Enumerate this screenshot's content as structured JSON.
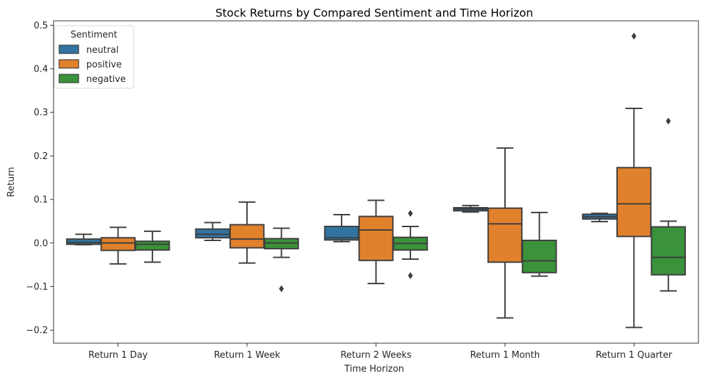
{
  "chart_data": {
    "type": "box",
    "title": "Stock Returns by Compared Sentiment and Time Horizon",
    "xlabel": "Time Horizon",
    "ylabel": "Return",
    "ylim": [
      -0.23,
      0.51
    ],
    "yticks": [
      -0.2,
      -0.1,
      0.0,
      0.1,
      0.2,
      0.3,
      0.4,
      0.5
    ],
    "ytick_labels": [
      "−0.2",
      "−0.1",
      "0.0",
      "0.1",
      "0.2",
      "0.3",
      "0.4",
      "0.5"
    ],
    "categories": [
      "Return 1 Day",
      "Return 1 Week",
      "Return 2 Weeks",
      "Return 1 Month",
      "Return 1 Quarter"
    ],
    "grid": false,
    "legend": {
      "title": "Sentiment",
      "placement": "top-left"
    },
    "series": [
      {
        "name": "neutral",
        "color": "#3274a1",
        "boxes": [
          {
            "whislo": -0.004,
            "q1": -0.003,
            "med": 0.001,
            "q3": 0.009,
            "whishi": 0.02,
            "fliers": []
          },
          {
            "whislo": 0.006,
            "q1": 0.012,
            "med": 0.02,
            "q3": 0.032,
            "whishi": 0.047,
            "fliers": []
          },
          {
            "whislo": 0.003,
            "q1": 0.007,
            "med": 0.012,
            "q3": 0.038,
            "whishi": 0.065,
            "fliers": []
          },
          {
            "whislo": 0.071,
            "q1": 0.074,
            "med": 0.078,
            "q3": 0.081,
            "whishi": 0.086,
            "fliers": []
          },
          {
            "whislo": 0.049,
            "q1": 0.055,
            "med": 0.06,
            "q3": 0.066,
            "whishi": 0.068,
            "fliers": []
          }
        ]
      },
      {
        "name": "positive",
        "color": "#e1812c",
        "boxes": [
          {
            "whislo": -0.048,
            "q1": -0.017,
            "med": 0.0,
            "q3": 0.012,
            "whishi": 0.036,
            "fliers": []
          },
          {
            "whislo": -0.046,
            "q1": -0.011,
            "med": 0.009,
            "q3": 0.042,
            "whishi": 0.094,
            "fliers": []
          },
          {
            "whislo": -0.093,
            "q1": -0.04,
            "med": 0.03,
            "q3": 0.061,
            "whishi": 0.098,
            "fliers": []
          },
          {
            "whislo": -0.172,
            "q1": -0.044,
            "med": 0.044,
            "q3": 0.08,
            "whishi": 0.218,
            "fliers": []
          },
          {
            "whislo": -0.194,
            "q1": 0.015,
            "med": 0.09,
            "q3": 0.173,
            "whishi": 0.309,
            "fliers": [
              0.475
            ]
          }
        ]
      },
      {
        "name": "negative",
        "color": "#3a923a",
        "boxes": [
          {
            "whislo": -0.044,
            "q1": -0.016,
            "med": -0.003,
            "q3": 0.004,
            "whishi": 0.027,
            "fliers": []
          },
          {
            "whislo": -0.033,
            "q1": -0.013,
            "med": 0.0,
            "q3": 0.01,
            "whishi": 0.034,
            "fliers": [
              -0.105
            ]
          },
          {
            "whislo": -0.037,
            "q1": -0.016,
            "med": -0.001,
            "q3": 0.013,
            "whishi": 0.038,
            "fliers": [
              0.068,
              -0.075
            ]
          },
          {
            "whislo": -0.076,
            "q1": -0.068,
            "med": -0.041,
            "q3": 0.006,
            "whishi": 0.07,
            "fliers": []
          },
          {
            "whislo": -0.11,
            "q1": -0.073,
            "med": -0.033,
            "q3": 0.037,
            "whishi": 0.05,
            "fliers": [
              0.28
            ]
          }
        ]
      }
    ]
  }
}
